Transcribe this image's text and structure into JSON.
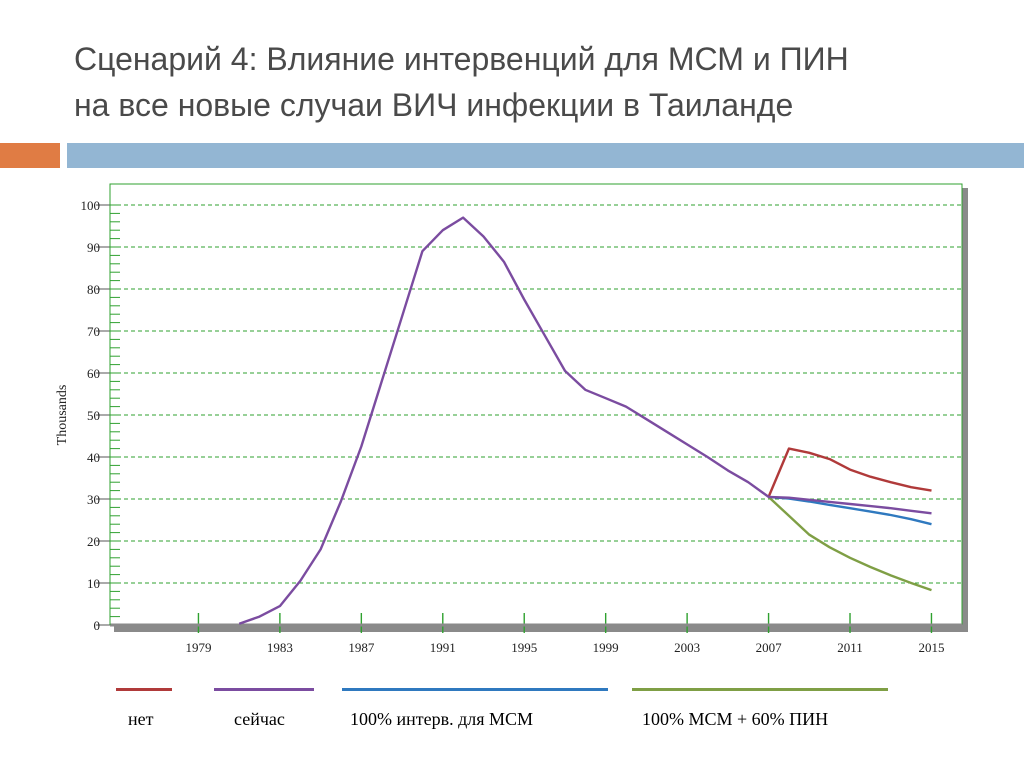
{
  "slide": {
    "title_line1": "Сценарий 4: Влияние интервенций для МСМ и ПИН",
    "title_line2": "на все новые случаи ВИЧ инфекции в Таиланде"
  },
  "colors": {
    "accent_orange": "#e07c44",
    "accent_blue": "#93b6d3",
    "grid_green": "#2fa12f"
  },
  "legend": [
    {
      "label": "нет",
      "color": "#b03a3a"
    },
    {
      "label": "сейчас",
      "color": "#7b4ca0"
    },
    {
      "label": "100% интерв. для МСМ",
      "color": "#2f79bf"
    },
    {
      "label": "100% МСМ + 60% ПИН",
      "color": "#7f9f45"
    }
  ],
  "chart_data": {
    "type": "line",
    "ylabel": "Thousands",
    "xlabel": "",
    "ylim": [
      0,
      100
    ],
    "xlim": [
      1975,
      2016.5
    ],
    "yticks": [
      0,
      10,
      20,
      30,
      40,
      50,
      60,
      70,
      80,
      90,
      100
    ],
    "xticks": [
      1979,
      1983,
      1987,
      1991,
      1995,
      1999,
      2003,
      2007,
      2011,
      2015
    ],
    "grid": true,
    "series": [
      {
        "name": "сейчас",
        "color": "#7b4ca0",
        "x": [
          1981,
          1982,
          1983,
          1984,
          1985,
          1986,
          1987,
          1988,
          1989,
          1990,
          1991,
          1992,
          1993,
          1994,
          1995,
          1996,
          1997,
          1998,
          1999,
          2000,
          2001,
          2002,
          2003,
          2004,
          2005,
          2006,
          2007,
          2008,
          2009,
          2010,
          2011,
          2012,
          2013,
          2014,
          2015
        ],
        "y": [
          0.3,
          2,
          4.5,
          10.5,
          18,
          29.5,
          42.5,
          58,
          73.5,
          89,
          94,
          97,
          92.5,
          86.5,
          77.5,
          69,
          60.5,
          56,
          54,
          52,
          49,
          46,
          43,
          40,
          36.8,
          34,
          30.5,
          30.3,
          29.8,
          29.3,
          28.8,
          28.3,
          27.8,
          27.2,
          26.6
        ]
      },
      {
        "name": "нет",
        "color": "#b03a3a",
        "x": [
          2007,
          2008,
          2009,
          2010,
          2011,
          2012,
          2013,
          2014,
          2015
        ],
        "y": [
          30.5,
          42,
          41,
          39.5,
          37,
          35.3,
          34,
          32.8,
          32
        ]
      },
      {
        "name": "100% интерв. для МСМ",
        "color": "#2f79bf",
        "x": [
          2007,
          2008,
          2009,
          2010,
          2011,
          2012,
          2013,
          2014,
          2015
        ],
        "y": [
          30.5,
          30.1,
          29.4,
          28.6,
          27.8,
          27,
          26.2,
          25.2,
          24
        ]
      },
      {
        "name": "100% МСМ + 60% ПИН",
        "color": "#7f9f45",
        "x": [
          2007,
          2008,
          2009,
          2010,
          2011,
          2012,
          2013,
          2014,
          2015
        ],
        "y": [
          30.5,
          26,
          21.5,
          18.5,
          16,
          13.8,
          11.8,
          10,
          8.3
        ]
      }
    ]
  }
}
